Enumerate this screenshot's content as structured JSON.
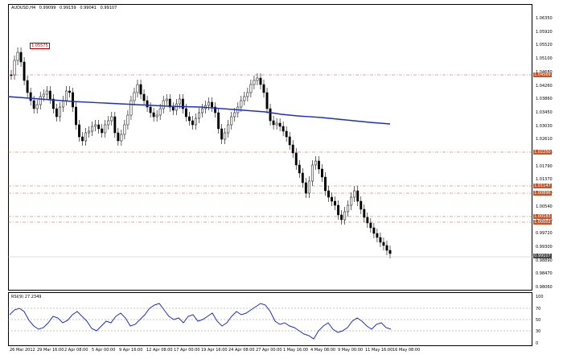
{
  "main_chart": {
    "symbol_label": "AUDUSD,H4",
    "ohlc": [
      "0.99099",
      "0.99159",
      "0.99041",
      "0.99107"
    ],
    "peak_tag": "1.05575",
    "price_ticks": [
      "1.06350",
      "1.05920",
      "1.05520",
      "1.05100",
      "1.04680",
      "1.04260",
      "1.03860",
      "1.03450",
      "1.03030",
      "1.02610",
      "1.02200",
      "1.01790",
      "1.01370",
      "1.00950",
      "1.00540",
      "1.00120",
      "0.99720",
      "0.99300",
      "0.98890",
      "0.98470",
      "0.98060"
    ],
    "levels": [
      {
        "label": "1.04569",
        "color": "#c0562a"
      },
      {
        "label": "1.02250",
        "color": "#c0562a"
      },
      {
        "label": "1.01147",
        "color": "#c0562a"
      },
      {
        "label": "1.00896",
        "color": "#c0562a"
      },
      {
        "label": "1.00183",
        "color": "#c0562a"
      },
      {
        "label": "1.00002",
        "color": "#c0562a"
      }
    ],
    "current_price": "0.99107",
    "ma_color": "#1f2fbf"
  },
  "rsi_panel": {
    "label": "RSI(9) 27.2349",
    "levels": [
      "100",
      "70",
      "50",
      "30",
      "0"
    ],
    "line_color": "#1f2fbf"
  },
  "time_axis": [
    "26 Mar 2012",
    "29 Mar 16:00",
    "2 Apr 08:00",
    "5 Apr 00:00",
    "9 Apr 16:00",
    "12 Apr 08:00",
    "17 Apr 00:00",
    "19 Apr 16:00",
    "24 Apr 08:00",
    "27 Apr 00:00",
    "1 May 16:00",
    "4 May 08:00",
    "9 May 00:00",
    "11 May 16:00",
    "16 May 08:00"
  ]
}
